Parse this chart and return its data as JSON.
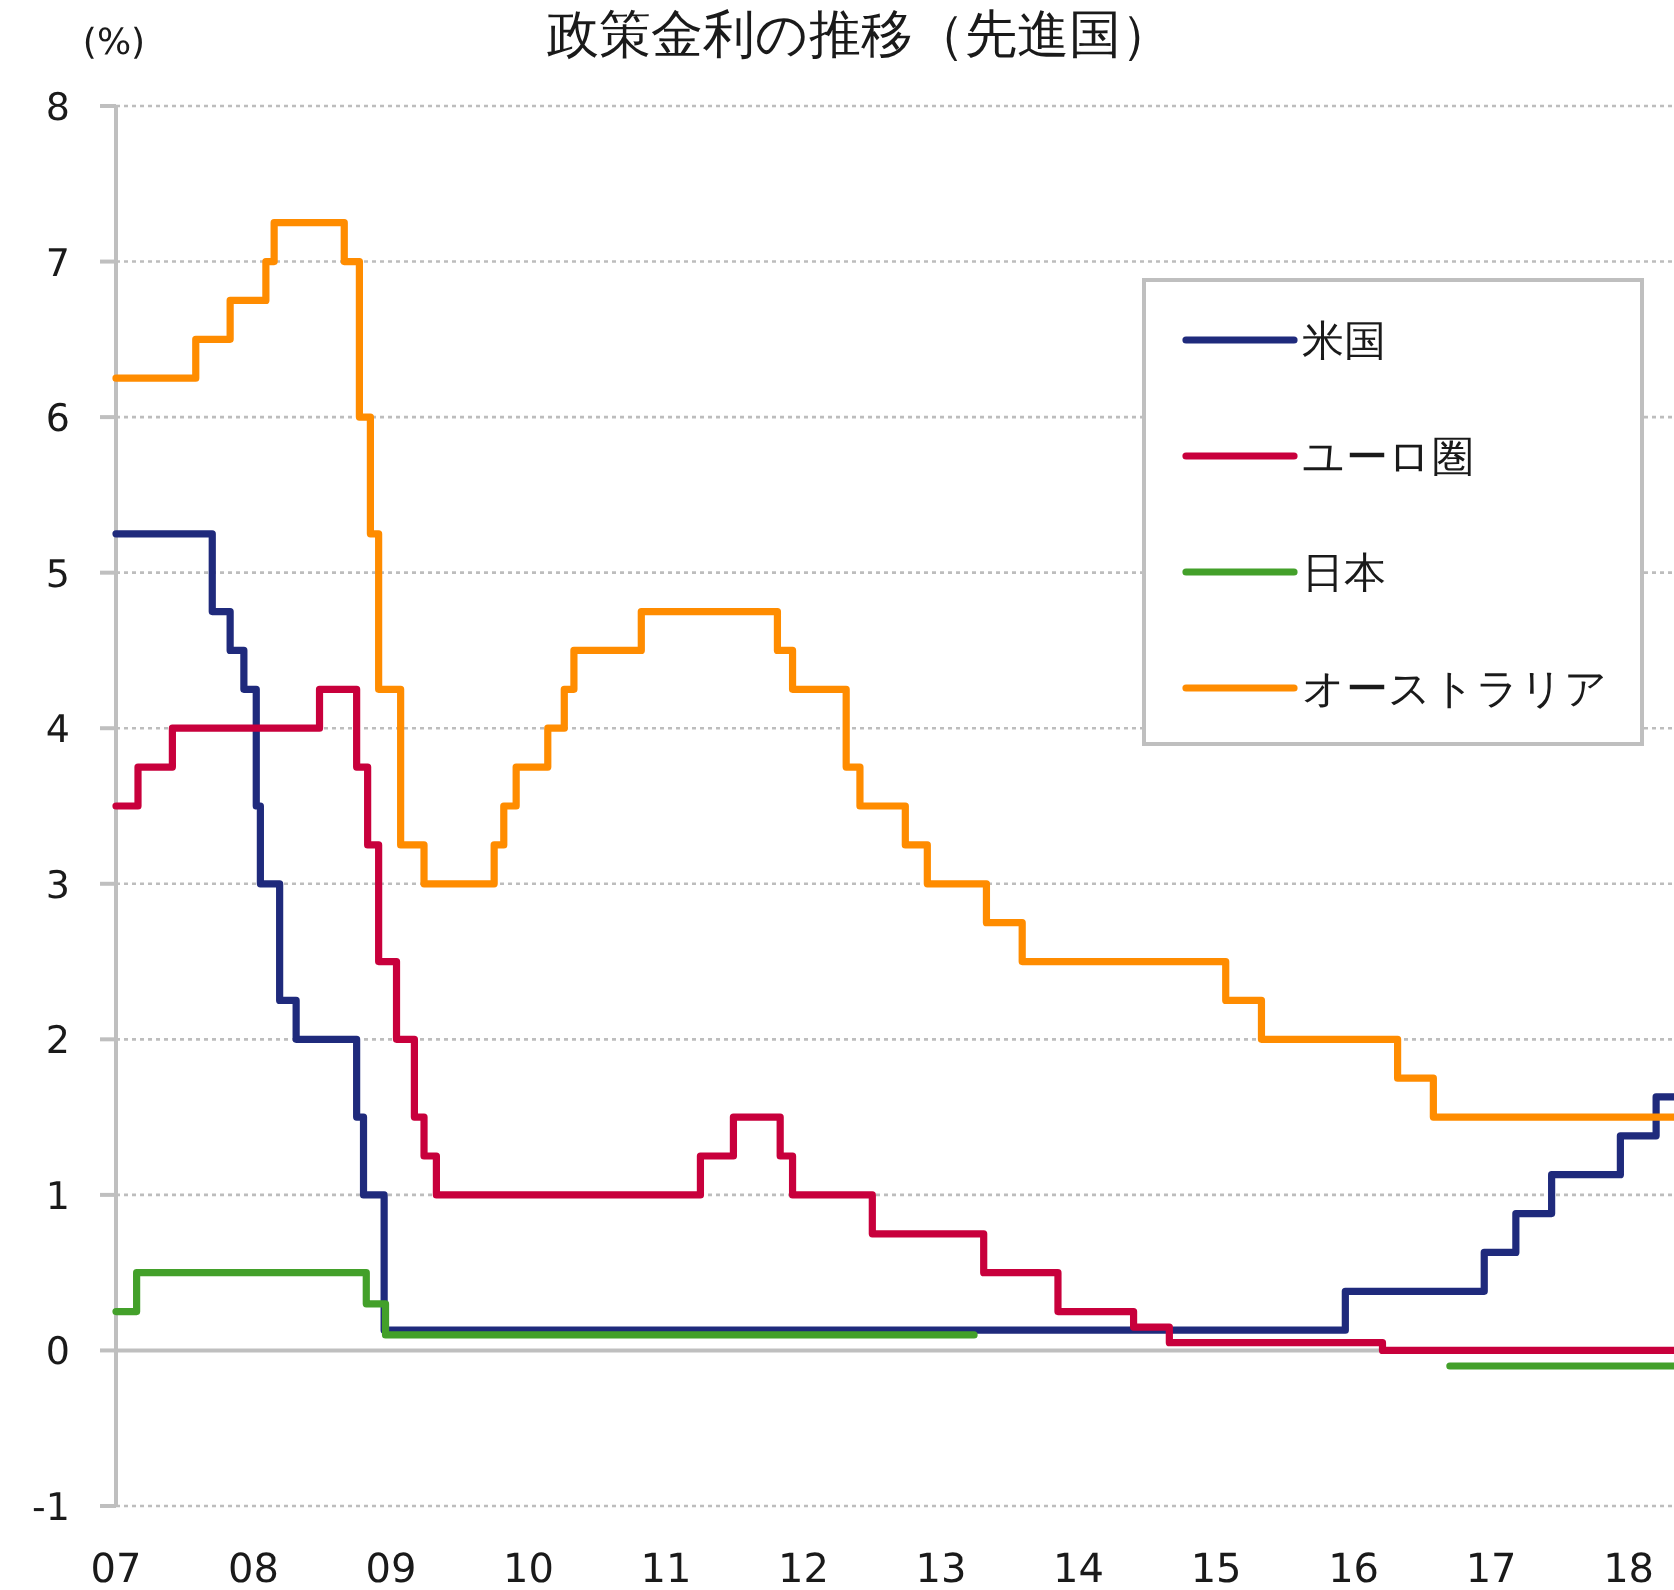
{
  "chart_data": {
    "type": "step",
    "title": "政策金利の推移（先進国）",
    "ylabel": "(%)",
    "xlim": [
      2007,
      2018.33
    ],
    "xticks": [
      {
        "value": 2007,
        "label": "07"
      },
      {
        "value": 2008,
        "label": "08"
      },
      {
        "value": 2009,
        "label": "09"
      },
      {
        "value": 2010,
        "label": "10"
      },
      {
        "value": 2011,
        "label": "11"
      },
      {
        "value": 2012,
        "label": "12"
      },
      {
        "value": 2013,
        "label": "13"
      },
      {
        "value": 2014,
        "label": "14"
      },
      {
        "value": 2015,
        "label": "15"
      },
      {
        "value": 2016,
        "label": "16"
      },
      {
        "value": 2017,
        "label": "17"
      },
      {
        "value": 2018,
        "label": "18"
      }
    ],
    "ylim": [
      -1,
      8
    ],
    "yticks": [
      -1,
      0,
      1,
      2,
      3,
      4,
      5,
      6,
      7,
      8
    ],
    "grid": "y",
    "legend": "top right",
    "line_style": "solid",
    "series": [
      {
        "name": "米国",
        "color": "#1f2a7c",
        "x": [
          2007,
          2007.7,
          2007.83,
          2007.93,
          2008.02,
          2008.05,
          2008.19,
          2008.31,
          2008.75,
          2008.8,
          2008.95,
          2015.94,
          2016.95,
          2017.18,
          2017.44,
          2017.94,
          2018.2,
          2018.33
        ],
        "values": [
          5.25,
          4.75,
          4.5,
          4.25,
          3.5,
          3.0,
          2.25,
          2.0,
          1.5,
          1.0,
          0.13,
          0.38,
          0.63,
          0.88,
          1.13,
          1.38,
          1.63,
          1.63
        ]
      },
      {
        "name": "ユーロ圏",
        "color": "#c8003c",
        "x": [
          2007,
          2007.16,
          2007.41,
          2008.48,
          2008.75,
          2008.83,
          2008.91,
          2009.04,
          2009.17,
          2009.24,
          2009.33,
          2011.25,
          2011.49,
          2011.83,
          2011.92,
          2012.5,
          2013.31,
          2013.85,
          2014.4,
          2014.66,
          2016.21,
          2018.33
        ],
        "values": [
          3.5,
          3.75,
          4.0,
          4.25,
          3.75,
          3.25,
          2.5,
          2.0,
          1.5,
          1.25,
          1.0,
          1.25,
          1.5,
          1.25,
          1.0,
          0.75,
          0.5,
          0.25,
          0.15,
          0.05,
          0,
          0
        ]
      },
      {
        "name": "日本",
        "color": "#43a02a",
        "x": [
          2007,
          2007.15,
          2008.82,
          2008.96,
          2013.24,
          2016.7,
          2018.33
        ],
        "values": [
          0.25,
          0.5,
          0.3,
          0.1,
          null,
          -0.1,
          -0.1
        ]
      },
      {
        "name": "オーストラリア",
        "color": "#ff8c00",
        "x": [
          2007,
          2007.58,
          2007.83,
          2008.09,
          2008.15,
          2008.66,
          2008.77,
          2008.85,
          2008.91,
          2009.07,
          2009.24,
          2009.75,
          2009.82,
          2009.91,
          2010.14,
          2010.26,
          2010.33,
          2010.82,
          2011.81,
          2011.92,
          2012.31,
          2012.41,
          2012.74,
          2012.9,
          2013.33,
          2013.59,
          2015.07,
          2015.33,
          2016.32,
          2016.58,
          2018.33
        ],
        "values": [
          6.25,
          6.5,
          6.75,
          7.0,
          7.25,
          7.0,
          6.0,
          5.25,
          4.25,
          3.25,
          3.0,
          3.25,
          3.5,
          3.75,
          4.0,
          4.25,
          4.5,
          4.75,
          4.5,
          4.25,
          3.75,
          3.5,
          3.25,
          3.0,
          2.75,
          2.5,
          2.25,
          2.0,
          1.75,
          1.5,
          1.5
        ]
      }
    ]
  }
}
